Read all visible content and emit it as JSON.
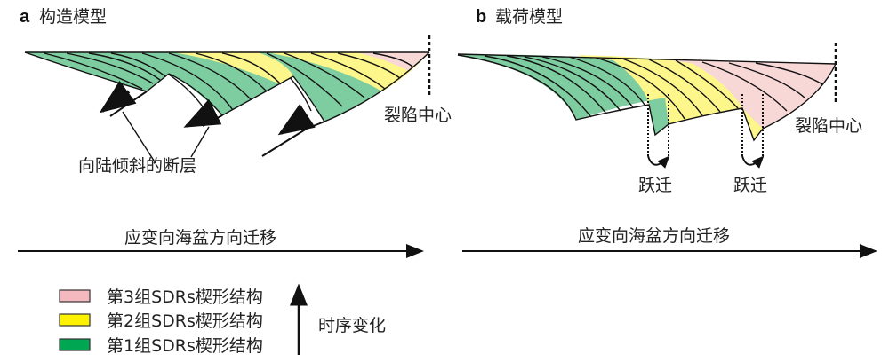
{
  "panel_a": {
    "letter": "a",
    "title": "构造模型",
    "rift_center": "裂陷中心",
    "fault_label": "向陆倾斜的断层",
    "migration": "应变向海盆方向迁移"
  },
  "panel_b": {
    "letter": "b",
    "title": "载荷模型",
    "rift_center": "裂陷中心",
    "jump_1": "跃迁",
    "jump_2": "跃迁",
    "migration": "应变向海盆方向迁移"
  },
  "legend": {
    "items": [
      {
        "label": "第3组SDRs楔形结构",
        "color": "#f4b8bf"
      },
      {
        "label": "第2组SDRs楔形结构",
        "color": "#fff200"
      },
      {
        "label": "第1组SDRs楔形结构",
        "color": "#00a651"
      }
    ],
    "time_label": "时序变化"
  },
  "colors": {
    "wedge_green": "#7ecda0",
    "wedge_yellow": "#fdf68a",
    "wedge_pink": "#f8d7d7"
  }
}
